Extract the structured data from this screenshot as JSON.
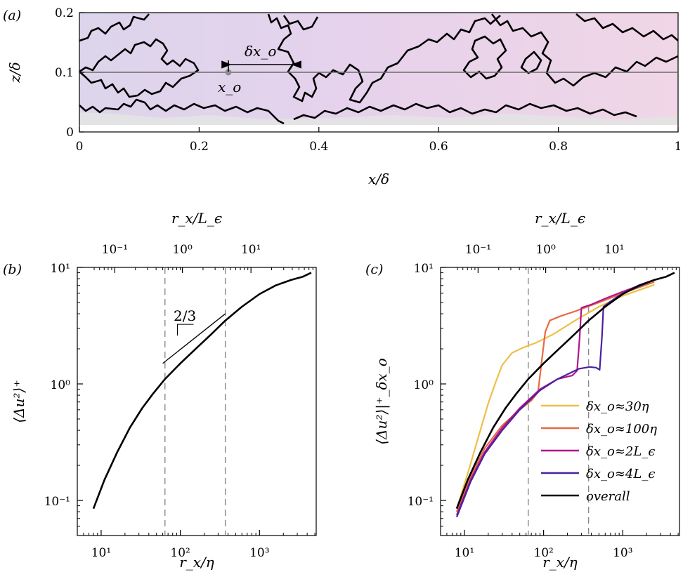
{
  "figure": {
    "panel_labels": [
      "(a)",
      "(b)",
      "(c)"
    ]
  },
  "chart_data": [
    {
      "id": "a",
      "type": "contour-map",
      "xlabel": "x/δ",
      "ylabel": "z/δ",
      "xlim": [
        0,
        1
      ],
      "ylim": [
        0,
        0.2
      ],
      "xticks": [
        "0",
        "0.2",
        "0.4",
        "0.6",
        "0.8",
        "1"
      ],
      "yticks": [
        "0",
        "0.1",
        "0.2"
      ],
      "reference_line_z": 0.1,
      "point": {
        "label": "x_o",
        "x": 0.25,
        "z": 0.1
      },
      "arrow": {
        "label": "δx_o",
        "x_start": 0.25,
        "x_end": 0.36,
        "z": 0.12
      },
      "colors": {
        "background": "#e9d6ec",
        "lower_region": "#e3e3e3",
        "contour": "#000000",
        "reference_line": "#6a6a6a",
        "point": "#8c8c8c"
      }
    },
    {
      "id": "b",
      "type": "line",
      "xscale": "log",
      "yscale": "log",
      "xlabel": "r_x/η",
      "ylabel": "⟨Δu²⟩⁺",
      "top_xlabel": "r_x/L_ϵ",
      "xlim": [
        5,
        5200
      ],
      "ylim": [
        0.05,
        10
      ],
      "xticks": [
        10,
        100,
        1000
      ],
      "xticklabels": [
        "10¹",
        "10²",
        "10³"
      ],
      "yticks": [
        0.1,
        1,
        10
      ],
      "yticklabels": [
        "10⁻¹",
        "10⁰",
        "10¹"
      ],
      "top_ticklabels": [
        "10⁻¹",
        "10⁰",
        "10¹"
      ],
      "vlines_x": [
        64,
        370
      ],
      "slope_annotation": {
        "text": "2/3",
        "slope": 0.6667
      },
      "series": [
        {
          "color": "#000000",
          "x": [
            8,
            11,
            16,
            23,
            33,
            45,
            64,
            100,
            150,
            250,
            370,
            600,
            1000,
            1600,
            2500,
            3500,
            4500
          ],
          "y": [
            0.085,
            0.15,
            0.26,
            0.42,
            0.62,
            0.82,
            1.1,
            1.5,
            1.95,
            2.7,
            3.5,
            4.6,
            5.9,
            7.0,
            7.8,
            8.3,
            9.0
          ]
        }
      ]
    },
    {
      "id": "c",
      "type": "line",
      "xscale": "log",
      "yscale": "log",
      "xlabel": "r_x/η",
      "ylabel": "⟨Δu²⟩|⁺_δx_o",
      "top_xlabel": "r_x/L_ϵ",
      "xlim": [
        5,
        5200
      ],
      "ylim": [
        0.05,
        10
      ],
      "xticks": [
        10,
        100,
        1000
      ],
      "xticklabels": [
        "10¹",
        "10²",
        "10³"
      ],
      "yticks": [
        0.1,
        1,
        10
      ],
      "yticklabels": [
        "10⁻¹",
        "10⁰",
        "10¹"
      ],
      "top_ticklabels": [
        "10⁻¹",
        "10⁰",
        "10¹"
      ],
      "vlines_x": [
        64,
        370
      ],
      "legend": "bottom-right",
      "series": [
        {
          "name": "δx_o≈30η",
          "color": "#edc04a",
          "x": [
            8,
            11,
            15,
            20,
            25,
            30,
            40,
            55,
            80,
            130,
            250,
            500,
            1000,
            2500
          ],
          "y": [
            0.085,
            0.17,
            0.35,
            0.68,
            1.05,
            1.45,
            1.85,
            2.05,
            2.25,
            2.65,
            3.5,
            4.6,
            5.7,
            7.1
          ]
        },
        {
          "name": "δx_o≈100η",
          "color": "#e86a3e",
          "x": [
            8,
            12,
            18,
            30,
            50,
            70,
            85,
            95,
            105,
            120,
            160,
            250,
            500,
            1000,
            2500
          ],
          "y": [
            0.08,
            0.16,
            0.28,
            0.44,
            0.6,
            0.72,
            0.85,
            1.6,
            2.8,
            3.5,
            3.8,
            4.2,
            5.0,
            6.0,
            7.5
          ]
        },
        {
          "name": "δx_o≈2L_ϵ",
          "color": "#b5148c",
          "x": [
            8,
            12,
            18,
            30,
            50,
            90,
            150,
            230,
            265,
            285,
            300,
            400,
            600,
            1000,
            2500
          ],
          "y": [
            0.075,
            0.15,
            0.26,
            0.42,
            0.62,
            0.9,
            1.1,
            1.18,
            1.3,
            2.5,
            4.5,
            4.8,
            5.4,
            6.2,
            7.8
          ]
        },
        {
          "name": "δx_o≈4L_ϵ",
          "color": "#4a229e",
          "x": [
            8,
            12,
            18,
            30,
            50,
            90,
            150,
            280,
            380,
            460,
            510,
            545,
            570,
            700,
            1000,
            2500
          ],
          "y": [
            0.072,
            0.145,
            0.25,
            0.4,
            0.6,
            0.88,
            1.1,
            1.35,
            1.4,
            1.38,
            1.32,
            2.5,
            4.6,
            5.1,
            6.0,
            7.8
          ]
        },
        {
          "name": "overall",
          "color": "#000000",
          "x": [
            8,
            11,
            16,
            23,
            33,
            45,
            64,
            100,
            150,
            250,
            370,
            600,
            1000,
            1600,
            2500,
            3500,
            4500
          ],
          "y": [
            0.085,
            0.15,
            0.26,
            0.42,
            0.62,
            0.82,
            1.1,
            1.5,
            1.95,
            2.7,
            3.5,
            4.6,
            5.9,
            7.0,
            7.8,
            8.3,
            9.0
          ]
        }
      ]
    }
  ]
}
